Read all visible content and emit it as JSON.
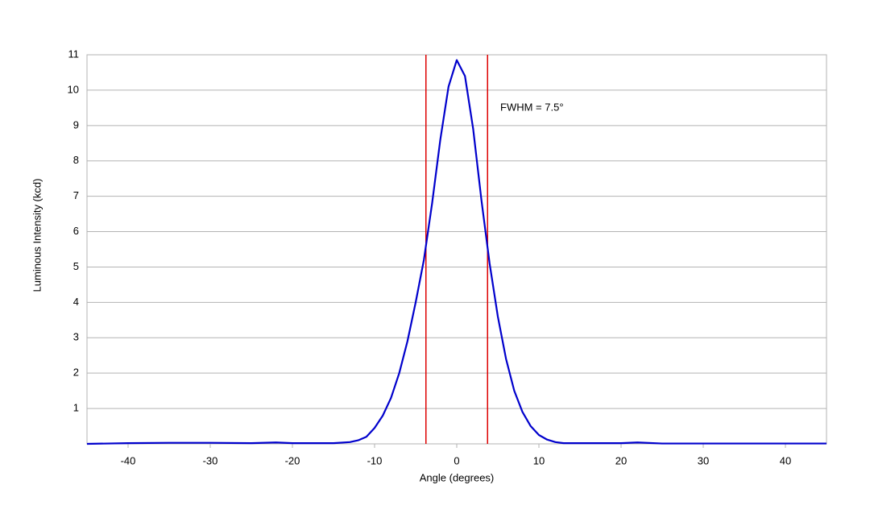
{
  "chart_data": {
    "type": "line",
    "xlabel": "Angle (degrees)",
    "ylabel": "Luminous Intensity (kcd)",
    "annotation": "FWHM = 7.5°",
    "x": [
      -45,
      -40,
      -35,
      -30,
      -25,
      -22,
      -20,
      -15,
      -13,
      -12,
      -11,
      -10,
      -9,
      -8,
      -7,
      -6,
      -5,
      -4,
      -3,
      -2,
      -1,
      0,
      1,
      2,
      3,
      4,
      5,
      6,
      7,
      8,
      9,
      10,
      11,
      12,
      13,
      15,
      20,
      22,
      25,
      30,
      35,
      40,
      45
    ],
    "series": [
      {
        "color": "#0000cc",
        "values": [
          0.0,
          0.02,
          0.03,
          0.03,
          0.02,
          0.04,
          0.02,
          0.02,
          0.05,
          0.1,
          0.2,
          0.45,
          0.8,
          1.3,
          2.0,
          2.9,
          4.0,
          5.2,
          6.8,
          8.6,
          10.1,
          10.85,
          10.4,
          8.9,
          6.9,
          5.1,
          3.6,
          2.4,
          1.5,
          0.9,
          0.5,
          0.25,
          0.12,
          0.05,
          0.02,
          0.02,
          0.02,
          0.04,
          0.01,
          0.01,
          0.01,
          0.01,
          0.01
        ]
      }
    ],
    "markers": {
      "color": "#dd0000",
      "values": [
        -3.75,
        3.75
      ]
    },
    "xlim": [
      -45,
      45
    ],
    "xticks": [
      -40,
      -30,
      -20,
      -10,
      0,
      10,
      20,
      30,
      40
    ],
    "ylim": [
      0,
      11
    ],
    "yticks": [
      1,
      2,
      3,
      4,
      5,
      6,
      7,
      8,
      9,
      10,
      11
    ],
    "grid": true
  }
}
